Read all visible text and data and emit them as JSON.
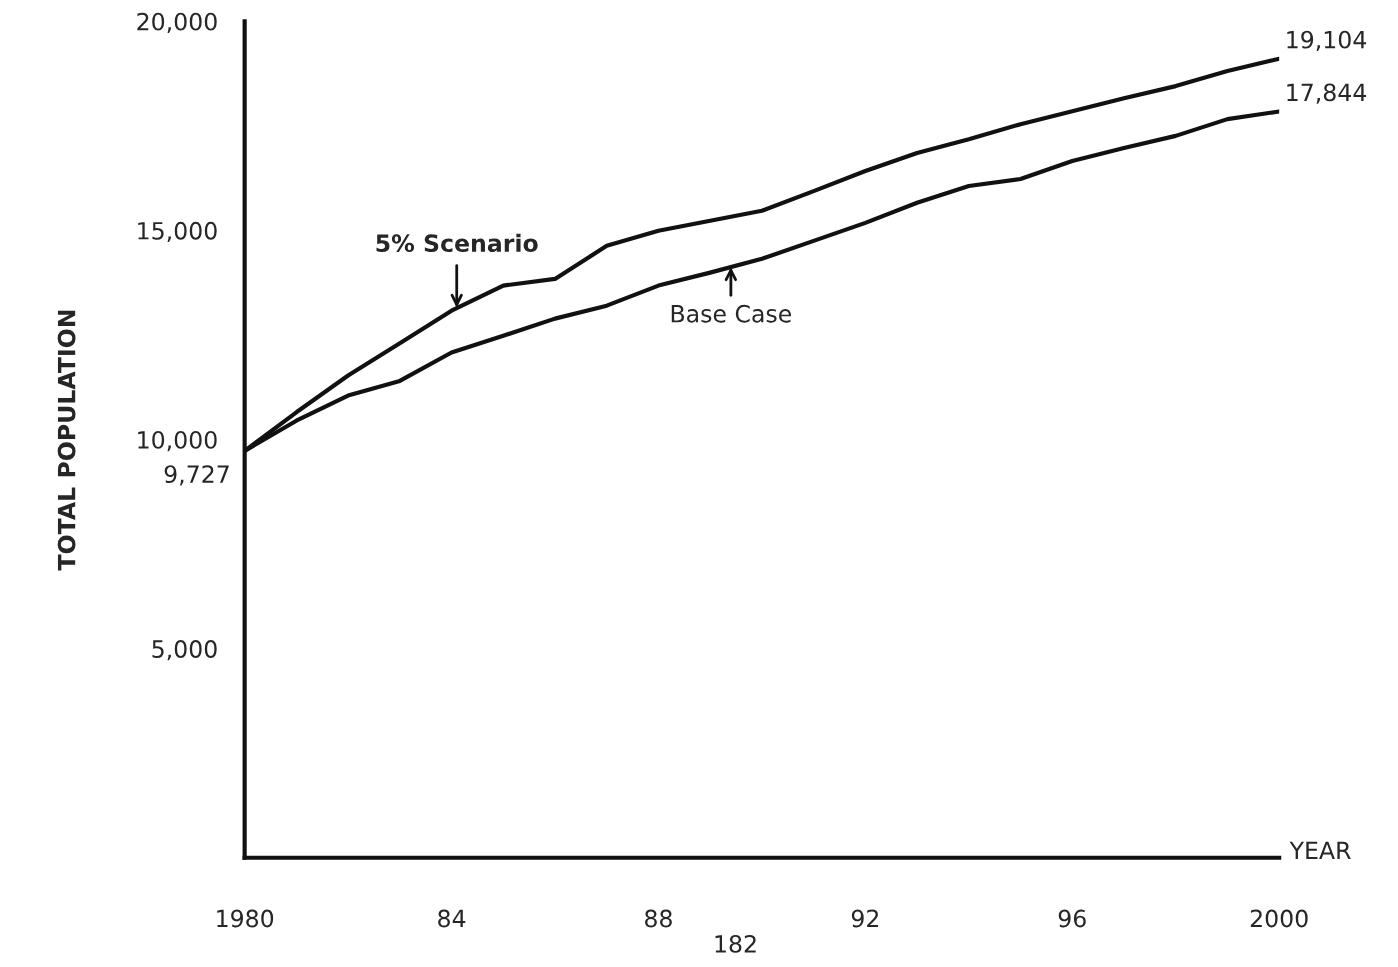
{
  "chart_data": {
    "type": "line",
    "xlabel": "YEAR",
    "ylabel": "TOTAL POPULATION",
    "x": [
      1980,
      1981,
      1982,
      1983,
      1984,
      1985,
      1986,
      1987,
      1988,
      1989,
      1990,
      1991,
      1992,
      1993,
      1994,
      1995,
      1996,
      1997,
      1998,
      1999,
      2000
    ],
    "series": [
      {
        "color": "#111111",
        "values": [
          9727,
          10650,
          11530,
          12300,
          13080,
          13680,
          13840,
          14630,
          14990,
          15230,
          15470,
          15940,
          16420,
          16850,
          17180,
          17540,
          17850,
          18160,
          18450,
          18810,
          19104
        ],
        "value_labels": [
          null,
          null,
          null,
          null,
          null,
          null,
          null,
          null,
          null,
          null,
          null,
          null,
          null,
          null,
          null,
          null,
          null,
          null,
          null,
          null,
          "19,104"
        ]
      },
      {
        "color": "#111111",
        "values": [
          9727,
          10450,
          11050,
          11400,
          12080,
          12480,
          12890,
          13200,
          13680,
          13990,
          14320,
          14750,
          15180,
          15660,
          16060,
          16230,
          16660,
          16970,
          17260,
          17660,
          17844
        ],
        "value_labels": [
          "9,727",
          null,
          null,
          null,
          null,
          null,
          null,
          null,
          null,
          null,
          null,
          null,
          null,
          null,
          null,
          null,
          null,
          null,
          null,
          null,
          "17,844"
        ]
      }
    ],
    "xlim": [
      1980,
      2000
    ],
    "xticks": [
      1980,
      {
        "value": 1984,
        "label": "84"
      },
      {
        "value": 1988,
        "label": "88"
      },
      {
        "value": 1992,
        "label": "92"
      },
      {
        "value": 1996,
        "label": "96"
      },
      2000
    ],
    "ylim": [
      0,
      20000
    ],
    "yticks": [
      {
        "value": 5000,
        "label": "5,000"
      },
      {
        "value": 10000,
        "label": "10,000"
      },
      {
        "value": 15000,
        "label": "15,000"
      },
      {
        "value": 20000,
        "label": "20,000"
      }
    ],
    "annotations": [
      {
        "text": "5% Scenario",
        "x": 1984.1,
        "y": 13150
      },
      {
        "text": "Base Case",
        "x": 1989.4,
        "y": 14120
      },
      "182"
    ],
    "grid": false,
    "legend": false,
    "marker": "none",
    "line_style": "solid"
  }
}
